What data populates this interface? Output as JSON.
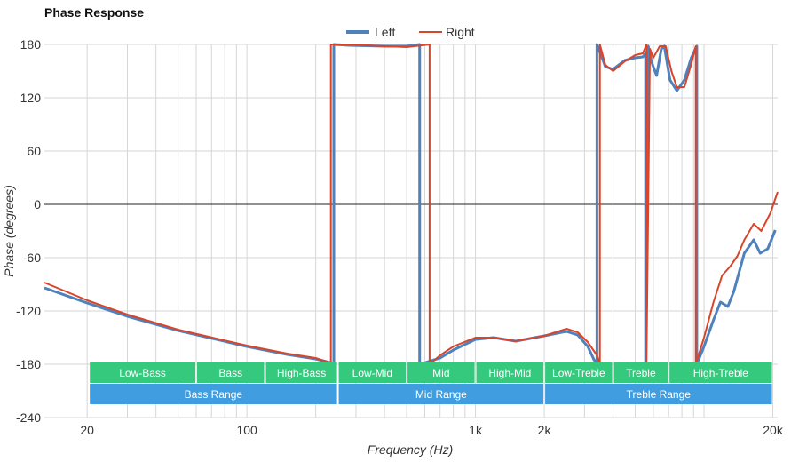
{
  "chart_data": {
    "type": "line",
    "title": "Phase Response",
    "xlabel": "Frequency (Hz)",
    "ylabel": "Phase (degrees)",
    "xscale": "log",
    "xlim": [
      13,
      21000
    ],
    "ylim": [
      -240,
      180
    ],
    "yticks": [
      180,
      120,
      60,
      0,
      -60,
      -120,
      -180,
      -240
    ],
    "xticks": [
      {
        "v": 20,
        "label": "20"
      },
      {
        "v": 100,
        "label": "100"
      },
      {
        "v": 1000,
        "label": "1k"
      },
      {
        "v": 2000,
        "label": "2k"
      },
      {
        "v": 20000,
        "label": "20k"
      }
    ],
    "grid": true,
    "legend": "top-center",
    "colors": {
      "Left": "#4f81bd",
      "Right": "#d9452a",
      "band_green": "#35c97e",
      "band_blue": "#3f9de0"
    },
    "series": [
      {
        "name": "Left",
        "points": [
          [
            13,
            -94
          ],
          [
            20,
            -111
          ],
          [
            30,
            -126
          ],
          [
            50,
            -142
          ],
          [
            100,
            -160
          ],
          [
            150,
            -169
          ],
          [
            200,
            -174
          ],
          [
            230,
            -178
          ],
          [
            240,
            -180
          ],
          [
            240,
            180
          ],
          [
            280,
            179
          ],
          [
            400,
            178
          ],
          [
            500,
            178
          ],
          [
            570,
            180
          ],
          [
            570,
            -180
          ],
          [
            700,
            -173
          ],
          [
            800,
            -164
          ],
          [
            1000,
            -152
          ],
          [
            1200,
            -150
          ],
          [
            1500,
            -154
          ],
          [
            2000,
            -148
          ],
          [
            2500,
            -143
          ],
          [
            2800,
            -147
          ],
          [
            3100,
            -160
          ],
          [
            3300,
            -175
          ],
          [
            3400,
            -180
          ],
          [
            3400,
            180
          ],
          [
            3700,
            155
          ],
          [
            4000,
            152
          ],
          [
            4500,
            162
          ],
          [
            5000,
            165
          ],
          [
            5400,
            166
          ],
          [
            5550,
            170
          ],
          [
            5550,
            -180
          ],
          [
            5700,
            178
          ],
          [
            5900,
            160
          ],
          [
            6200,
            145
          ],
          [
            6500,
            175
          ],
          [
            6700,
            178
          ],
          [
            7100,
            140
          ],
          [
            7600,
            128
          ],
          [
            8200,
            140
          ],
          [
            8800,
            165
          ],
          [
            9300,
            178
          ],
          [
            9300,
            -180
          ],
          [
            10000,
            -160
          ],
          [
            11000,
            -130
          ],
          [
            11800,
            -110
          ],
          [
            12700,
            -115
          ],
          [
            13500,
            -98
          ],
          [
            15000,
            -55
          ],
          [
            16500,
            -40
          ],
          [
            17600,
            -55
          ],
          [
            19000,
            -50
          ],
          [
            20500,
            -29
          ]
        ]
      },
      {
        "name": "Right",
        "points": [
          [
            13,
            -88
          ],
          [
            20,
            -108
          ],
          [
            30,
            -124
          ],
          [
            50,
            -141
          ],
          [
            100,
            -159
          ],
          [
            150,
            -168
          ],
          [
            200,
            -173
          ],
          [
            228,
            -178
          ],
          [
            233,
            -180
          ],
          [
            233,
            180
          ],
          [
            280,
            180
          ],
          [
            400,
            178
          ],
          [
            500,
            177
          ],
          [
            630,
            180
          ],
          [
            630,
            -180
          ],
          [
            700,
            -170
          ],
          [
            800,
            -160
          ],
          [
            1000,
            -150
          ],
          [
            1200,
            -150
          ],
          [
            1500,
            -154
          ],
          [
            2000,
            -148
          ],
          [
            2500,
            -140
          ],
          [
            2800,
            -144
          ],
          [
            3100,
            -155
          ],
          [
            3400,
            -170
          ],
          [
            3500,
            -180
          ],
          [
            3500,
            180
          ],
          [
            3700,
            157
          ],
          [
            4000,
            150
          ],
          [
            4500,
            161
          ],
          [
            5000,
            168
          ],
          [
            5400,
            170
          ],
          [
            5600,
            180
          ],
          [
            5600,
            -180
          ],
          [
            5800,
            175
          ],
          [
            6000,
            165
          ],
          [
            6400,
            178
          ],
          [
            6800,
            178
          ],
          [
            7200,
            150
          ],
          [
            7600,
            132
          ],
          [
            8200,
            132
          ],
          [
            8800,
            158
          ],
          [
            9200,
            178
          ],
          [
            9200,
            -180
          ],
          [
            10000,
            -150
          ],
          [
            11000,
            -110
          ],
          [
            12000,
            -80
          ],
          [
            13000,
            -70
          ],
          [
            14000,
            -58
          ],
          [
            15000,
            -40
          ],
          [
            16500,
            -22
          ],
          [
            17800,
            -30
          ],
          [
            19500,
            -10
          ],
          [
            21000,
            14
          ]
        ]
      }
    ],
    "bands": [
      {
        "row": 1,
        "label": "Low-Bass",
        "from": 20,
        "to": 60
      },
      {
        "row": 1,
        "label": "Bass",
        "from": 60,
        "to": 120
      },
      {
        "row": 1,
        "label": "High-Bass",
        "from": 120,
        "to": 250
      },
      {
        "row": 1,
        "label": "Low-Mid",
        "from": 250,
        "to": 500
      },
      {
        "row": 1,
        "label": "Mid",
        "from": 500,
        "to": 1000
      },
      {
        "row": 1,
        "label": "High-Mid",
        "from": 1000,
        "to": 2000
      },
      {
        "row": 1,
        "label": "Low-Treble",
        "from": 2000,
        "to": 4000
      },
      {
        "row": 1,
        "label": "Treble",
        "from": 4000,
        "to": 7000
      },
      {
        "row": 1,
        "label": "High-Treble",
        "from": 7000,
        "to": 20000
      },
      {
        "row": 2,
        "label": "Bass Range",
        "from": 20,
        "to": 250
      },
      {
        "row": 2,
        "label": "Mid Range",
        "from": 250,
        "to": 2000
      },
      {
        "row": 2,
        "label": "Treble Range",
        "from": 2000,
        "to": 20000
      }
    ]
  }
}
